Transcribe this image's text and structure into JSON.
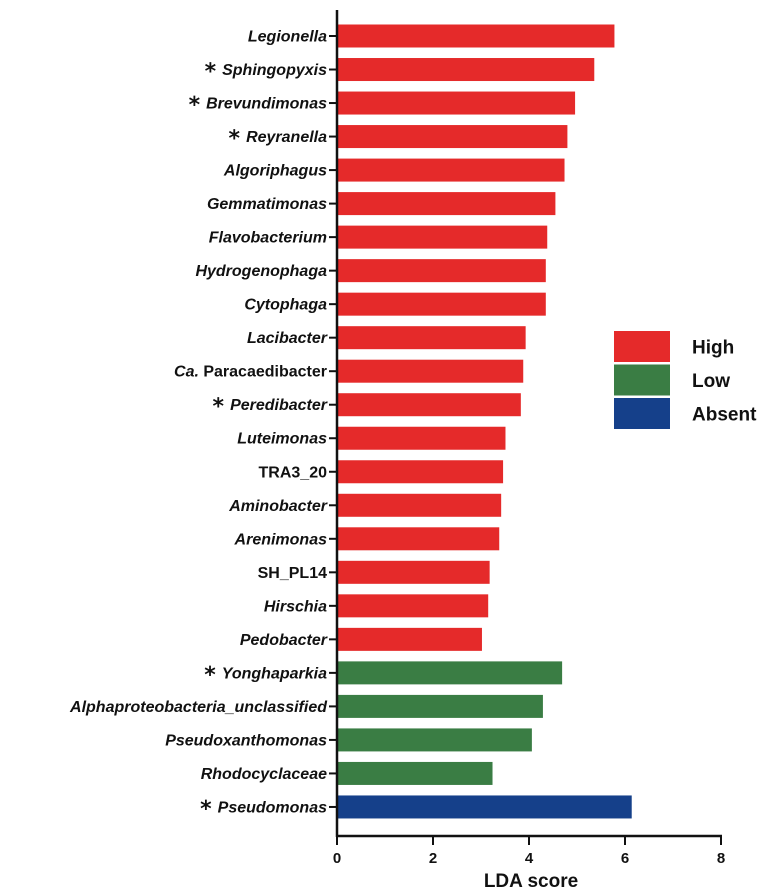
{
  "chart_data": {
    "type": "bar",
    "orientation": "horizontal",
    "xlabel": "LDA score",
    "xlim": [
      0,
      8
    ],
    "xticks": [
      "0",
      "2",
      "4",
      "6",
      "8"
    ],
    "grid": false,
    "legend_position": "right",
    "colors": {
      "High": "#e52a2a",
      "Low": "#3a7d44",
      "Absent": "#15408a"
    },
    "legend": [
      {
        "name": "High",
        "color": "#e52a2a"
      },
      {
        "name": "Low",
        "color": "#3a7d44"
      },
      {
        "name": "Absent",
        "color": "#15408a"
      }
    ],
    "categories": [
      {
        "label": "Legionella",
        "italic": true,
        "star": false,
        "value": 5.78,
        "group": "High"
      },
      {
        "label": "Sphingopyxis",
        "italic": true,
        "star": true,
        "value": 5.36,
        "group": "High"
      },
      {
        "label": "Brevundimonas",
        "italic": true,
        "star": true,
        "value": 4.96,
        "group": "High"
      },
      {
        "label": "Reyranella",
        "italic": true,
        "star": true,
        "value": 4.8,
        "group": "High"
      },
      {
        "label": "Algoriphagus",
        "italic": true,
        "star": false,
        "value": 4.74,
        "group": "High"
      },
      {
        "label": "Gemmatimonas",
        "italic": true,
        "star": false,
        "value": 4.55,
        "group": "High"
      },
      {
        "label": "Flavobacterium",
        "italic": true,
        "star": false,
        "value": 4.38,
        "group": "High"
      },
      {
        "label": "Hydrogenophaga",
        "italic": true,
        "star": false,
        "value": 4.35,
        "group": "High"
      },
      {
        "label": "Cytophaga",
        "italic": true,
        "star": false,
        "value": 4.35,
        "group": "High"
      },
      {
        "label": "Lacibacter",
        "italic": true,
        "star": false,
        "value": 3.93,
        "group": "High"
      },
      {
        "label": "Ca. Paracaedibacter",
        "prefix": "Ca.",
        "rest": "Paracaedibacter",
        "italic": false,
        "star": false,
        "value": 3.88,
        "group": "High"
      },
      {
        "label": "Peredibacter",
        "italic": true,
        "star": true,
        "value": 3.83,
        "group": "High"
      },
      {
        "label": "Luteimonas",
        "italic": true,
        "star": false,
        "value": 3.51,
        "group": "High"
      },
      {
        "label": "TRA3_20",
        "italic": false,
        "star": false,
        "value": 3.46,
        "group": "High"
      },
      {
        "label": "Aminobacter",
        "italic": true,
        "star": false,
        "value": 3.42,
        "group": "High"
      },
      {
        "label": "Arenimonas",
        "italic": true,
        "star": false,
        "value": 3.38,
        "group": "High"
      },
      {
        "label": "SH_PL14",
        "italic": false,
        "star": false,
        "value": 3.18,
        "group": "High"
      },
      {
        "label": "Hirschia",
        "italic": true,
        "star": false,
        "value": 3.15,
        "group": "High"
      },
      {
        "label": "Pedobacter",
        "italic": true,
        "star": false,
        "value": 3.02,
        "group": "High"
      },
      {
        "label": "Yonghaparkia",
        "italic": true,
        "star": true,
        "value": 4.69,
        "group": "Low"
      },
      {
        "label": "Alphaproteobacteria_unclassified",
        "italic": true,
        "star": false,
        "value": 4.29,
        "group": "Low"
      },
      {
        "label": "Pseudoxanthomonas",
        "italic": true,
        "star": false,
        "value": 4.06,
        "group": "Low"
      },
      {
        "label": "Rhodocyclaceae",
        "italic": true,
        "star": false,
        "value": 3.24,
        "group": "Low"
      },
      {
        "label": "Pseudomonas",
        "italic": true,
        "star": true,
        "value": 6.14,
        "group": "Absent"
      }
    ]
  }
}
